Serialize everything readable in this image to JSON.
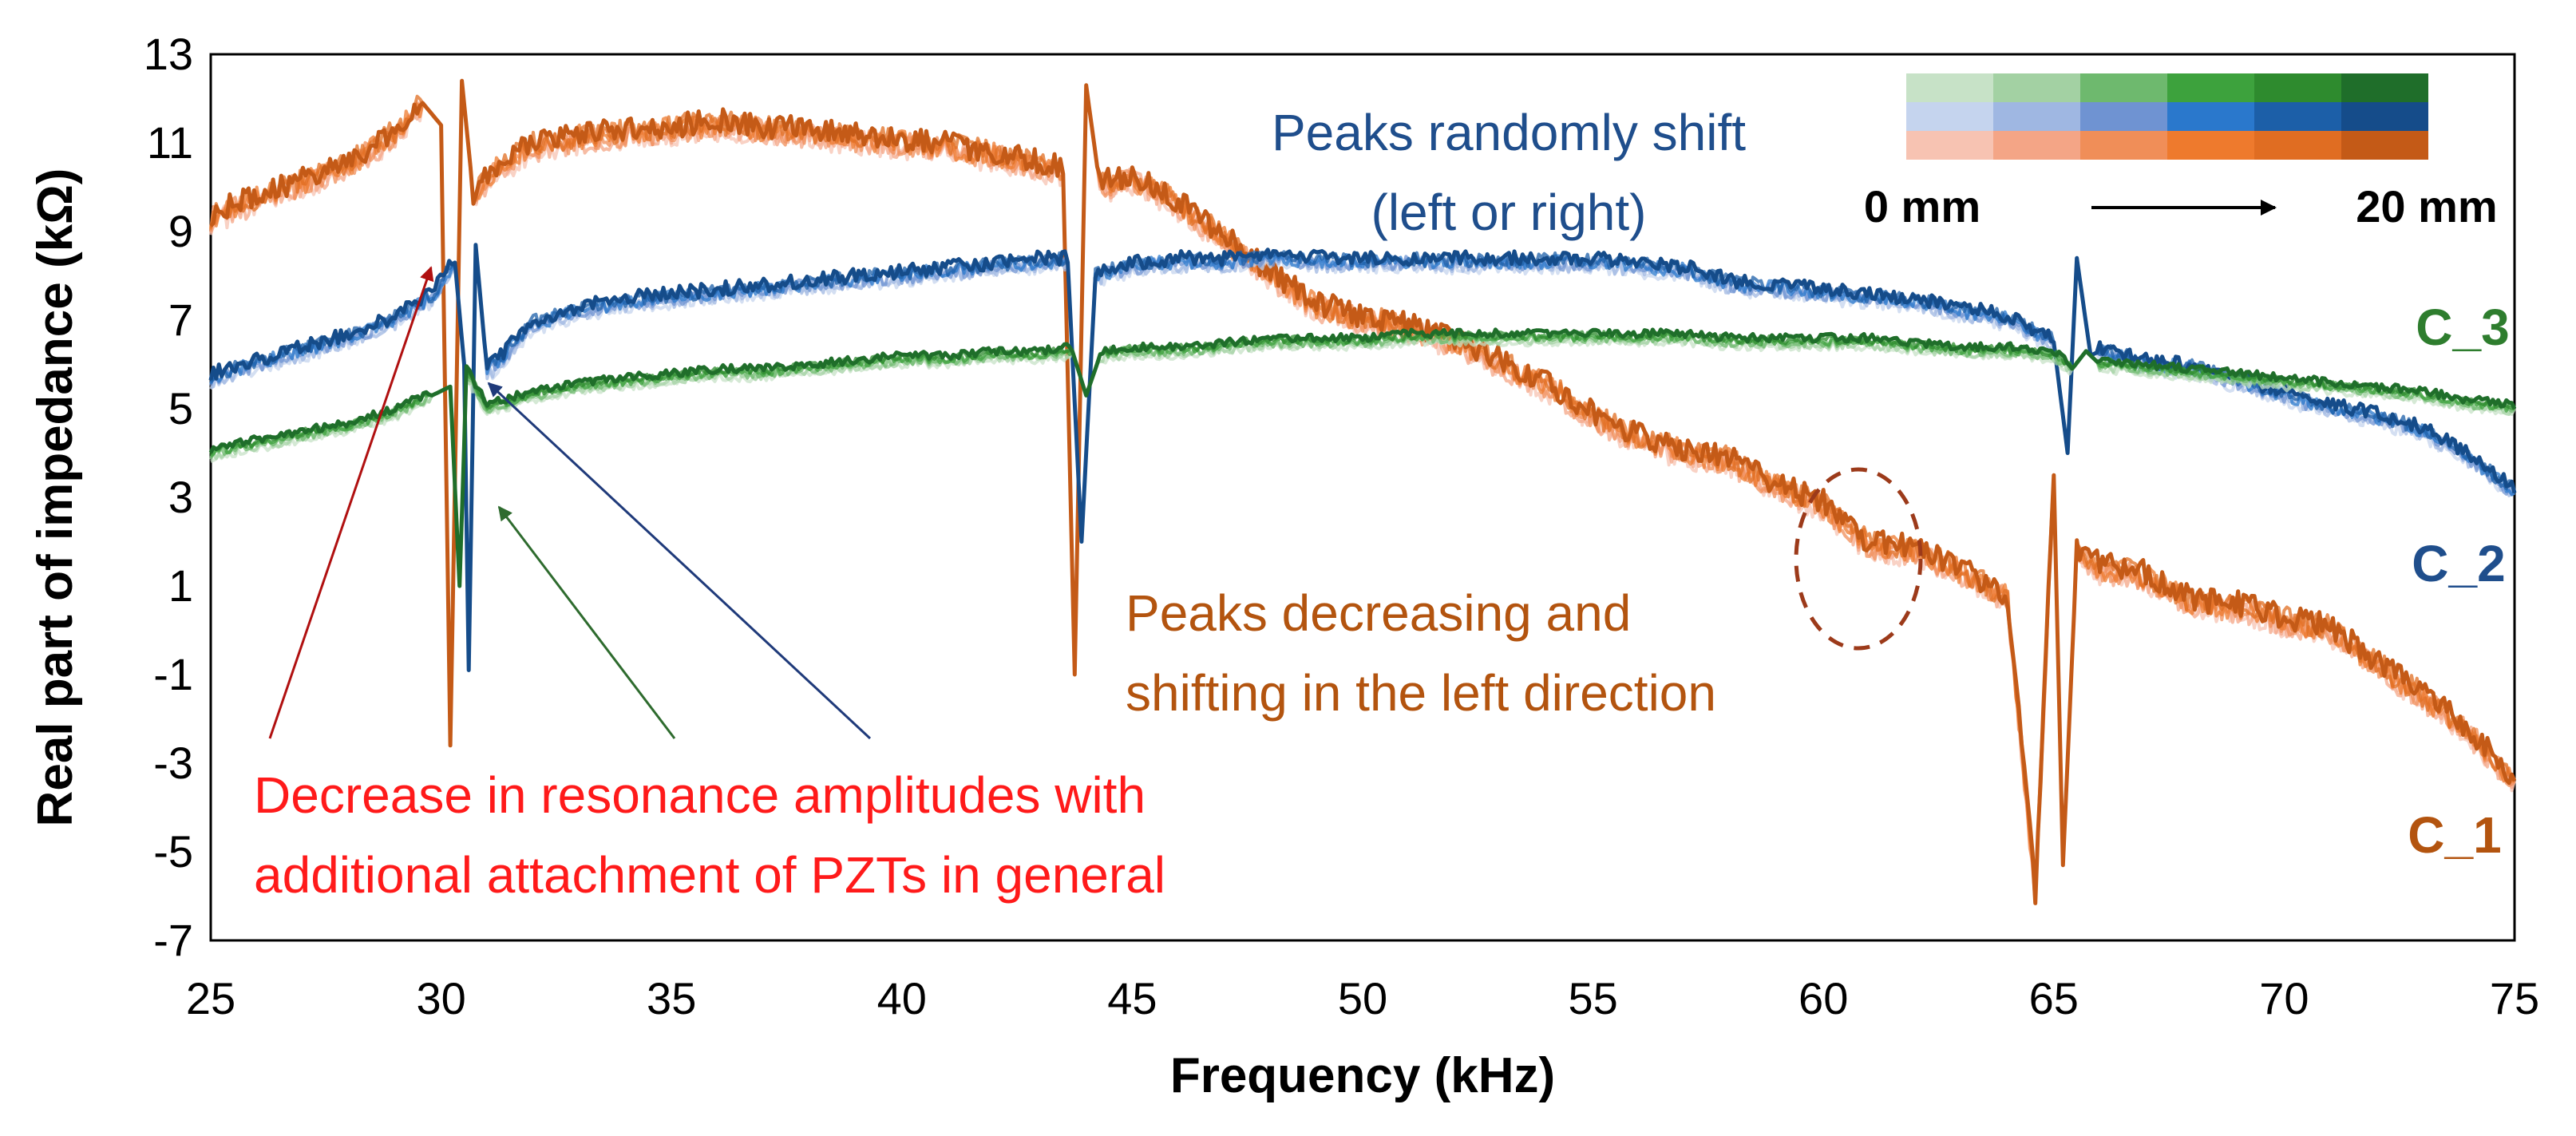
{
  "chart_data": {
    "type": "line",
    "title": "",
    "xlabel": "Frequency  (kHz)",
    "ylabel": "Real part of impedance (kΩ)",
    "xlim": [
      25,
      75
    ],
    "ylim": [
      -7,
      13
    ],
    "xticks": [
      25,
      30,
      35,
      40,
      45,
      50,
      55,
      60,
      65,
      70,
      75
    ],
    "yticks": [
      -7,
      -5,
      -3,
      -1,
      1,
      3,
      5,
      7,
      9,
      11,
      13
    ],
    "series": [
      {
        "name": "C_1",
        "label": "C_1",
        "color": "#D4621A",
        "colors": [
          "#F7C3B2",
          "#F4A586",
          "#F08E58",
          "#EE7A2D",
          "#E06D22",
          "#C45A17"
        ],
        "points": [
          [
            25,
            9.3
          ],
          [
            26,
            9.7
          ],
          [
            27,
            10.1
          ],
          [
            28,
            10.5
          ],
          [
            29,
            11.2
          ],
          [
            29.6,
            11.9
          ],
          [
            30,
            11.4
          ],
          [
            30.2,
            -2.6
          ],
          [
            30.45,
            12.4
          ],
          [
            30.7,
            9.8
          ],
          [
            31.2,
            10.4
          ],
          [
            32,
            10.9
          ],
          [
            33,
            11.1
          ],
          [
            34,
            11.2
          ],
          [
            35,
            11.3
          ],
          [
            36,
            11.4
          ],
          [
            37,
            11.3
          ],
          [
            38,
            11.2
          ],
          [
            39,
            11.1
          ],
          [
            40,
            11.0
          ],
          [
            41,
            10.9
          ],
          [
            42,
            10.7
          ],
          [
            43,
            10.5
          ],
          [
            43.5,
            10.3
          ],
          [
            43.75,
            -1.0
          ],
          [
            44,
            12.3
          ],
          [
            44.3,
            10.0
          ],
          [
            45,
            10.2
          ],
          [
            46,
            9.6
          ],
          [
            47,
            8.8
          ],
          [
            48,
            8.0
          ],
          [
            49,
            7.3
          ],
          [
            50,
            7.0
          ],
          [
            51,
            6.8
          ],
          [
            52,
            6.5
          ],
          [
            53,
            6.0
          ],
          [
            54,
            5.5
          ],
          [
            55,
            4.8
          ],
          [
            56,
            4.3
          ],
          [
            57,
            4.0
          ],
          [
            58,
            3.8
          ],
          [
            59,
            3.2
          ],
          [
            60,
            2.8
          ],
          [
            61,
            1.9
          ],
          [
            62,
            1.8
          ],
          [
            63,
            1.3
          ],
          [
            64,
            0.7
          ],
          [
            64.6,
            -6.0
          ],
          [
            65.0,
            3.5
          ],
          [
            65.2,
            -5.3
          ],
          [
            65.5,
            1.8
          ],
          [
            66,
            1.4
          ],
          [
            67,
            1.2
          ],
          [
            68,
            0.6
          ],
          [
            69,
            0.5
          ],
          [
            70,
            0.2
          ],
          [
            71,
            0.0
          ],
          [
            72,
            -0.8
          ],
          [
            73,
            -1.5
          ],
          [
            74,
            -2.3
          ],
          [
            75,
            -3.4
          ]
        ]
      },
      {
        "name": "C_2",
        "label": "C_2",
        "color": "#1F5DA8",
        "colors": [
          "#C5D4EE",
          "#9FB7E2",
          "#6F93D2",
          "#2A78CC",
          "#1C5FA8",
          "#154C8A"
        ],
        "points": [
          [
            25,
            5.7
          ],
          [
            26,
            6.0
          ],
          [
            27,
            6.3
          ],
          [
            28,
            6.6
          ],
          [
            29,
            7.0
          ],
          [
            29.8,
            7.5
          ],
          [
            30.3,
            8.3
          ],
          [
            30.5,
            6.0
          ],
          [
            30.6,
            -0.9
          ],
          [
            30.75,
            8.7
          ],
          [
            31,
            5.8
          ],
          [
            32,
            6.9
          ],
          [
            33,
            7.2
          ],
          [
            34,
            7.4
          ],
          [
            35,
            7.5
          ],
          [
            36,
            7.6
          ],
          [
            37,
            7.7
          ],
          [
            38,
            7.8
          ],
          [
            39,
            7.9
          ],
          [
            40,
            8.0
          ],
          [
            41,
            8.1
          ],
          [
            42,
            8.2
          ],
          [
            43,
            8.3
          ],
          [
            43.6,
            8.3
          ],
          [
            43.9,
            2.0
          ],
          [
            44.2,
            8.0
          ],
          [
            45,
            8.2
          ],
          [
            46,
            8.3
          ],
          [
            47,
            8.3
          ],
          [
            48,
            8.4
          ],
          [
            49,
            8.3
          ],
          [
            50,
            8.3
          ],
          [
            51,
            8.3
          ],
          [
            52,
            8.3
          ],
          [
            53,
            8.3
          ],
          [
            54,
            8.3
          ],
          [
            55,
            8.3
          ],
          [
            56,
            8.2
          ],
          [
            57,
            8.1
          ],
          [
            58,
            7.8
          ],
          [
            59,
            7.7
          ],
          [
            60,
            7.6
          ],
          [
            61,
            7.5
          ],
          [
            62,
            7.4
          ],
          [
            63,
            7.2
          ],
          [
            64,
            7.0
          ],
          [
            65,
            6.5
          ],
          [
            65.3,
            4.0
          ],
          [
            65.5,
            8.4
          ],
          [
            65.8,
            6.2
          ],
          [
            66,
            6.3
          ],
          [
            67,
            6.0
          ],
          [
            68,
            5.9
          ],
          [
            69,
            5.6
          ],
          [
            70,
            5.3
          ],
          [
            71,
            5.0
          ],
          [
            72,
            4.8
          ],
          [
            73,
            4.5
          ],
          [
            74,
            3.9
          ],
          [
            75,
            3.1
          ]
        ]
      },
      {
        "name": "C_3",
        "label": "C_3",
        "color": "#2E8B2E",
        "colors": [
          "#C7E2C7",
          "#A3D1A3",
          "#6EB96E",
          "#3DA23D",
          "#2E8B2E",
          "#1F6E2A"
        ],
        "points": [
          [
            25,
            4.0
          ],
          [
            26,
            4.2
          ],
          [
            27,
            4.4
          ],
          [
            28,
            4.6
          ],
          [
            29,
            4.9
          ],
          [
            29.8,
            5.3
          ],
          [
            30.2,
            5.5
          ],
          [
            30.4,
            1.0
          ],
          [
            30.55,
            5.8
          ],
          [
            31,
            5.0
          ],
          [
            32,
            5.3
          ],
          [
            33,
            5.5
          ],
          [
            34,
            5.6
          ],
          [
            35,
            5.7
          ],
          [
            36,
            5.8
          ],
          [
            37,
            5.8
          ],
          [
            38,
            5.9
          ],
          [
            39,
            6.0
          ],
          [
            40,
            6.1
          ],
          [
            41,
            6.1
          ],
          [
            42,
            6.2
          ],
          [
            43,
            6.2
          ],
          [
            43.7,
            6.3
          ],
          [
            44.0,
            5.3
          ],
          [
            44.3,
            6.2
          ],
          [
            45,
            6.3
          ],
          [
            46,
            6.3
          ],
          [
            47,
            6.4
          ],
          [
            48,
            6.5
          ],
          [
            49,
            6.5
          ],
          [
            50,
            6.5
          ],
          [
            51,
            6.6
          ],
          [
            52,
            6.6
          ],
          [
            53,
            6.6
          ],
          [
            54,
            6.6
          ],
          [
            55,
            6.6
          ],
          [
            56,
            6.6
          ],
          [
            57,
            6.6
          ],
          [
            58,
            6.5
          ],
          [
            59,
            6.5
          ],
          [
            60,
            6.5
          ],
          [
            61,
            6.5
          ],
          [
            62,
            6.4
          ],
          [
            63,
            6.3
          ],
          [
            64,
            6.3
          ],
          [
            65,
            6.2
          ],
          [
            65.4,
            5.9
          ],
          [
            65.7,
            6.3
          ],
          [
            66,
            6.0
          ],
          [
            67,
            5.9
          ],
          [
            68,
            5.8
          ],
          [
            69,
            5.7
          ],
          [
            70,
            5.6
          ],
          [
            71,
            5.5
          ],
          [
            72,
            5.4
          ],
          [
            73,
            5.3
          ],
          [
            74,
            5.1
          ],
          [
            75,
            5.0
          ]
        ]
      }
    ],
    "legend": {
      "start_label": "0 mm",
      "end_label": "20 mm",
      "arrow": "→"
    },
    "annotations": {
      "peaks_shift_line1": "Peaks randomly shift",
      "peaks_shift_line2": "(left or right)",
      "peaks_decreasing_line1": "Peaks decreasing and",
      "peaks_decreasing_line2": "shifting in the left direction",
      "decrease_line1": "Decrease in resonance amplitudes with",
      "decrease_line2": "additional attachment of PZTs in general"
    },
    "annotation_colors": {
      "shift": "#1F4E8C",
      "decreasing": "#B3540F",
      "decrease": "#FF1A1A",
      "red_arrow": "#B01010",
      "green_arrow": "#2E6B2E",
      "blue_arrow": "#1F3A7A",
      "circle": "#9C3A1A"
    }
  }
}
